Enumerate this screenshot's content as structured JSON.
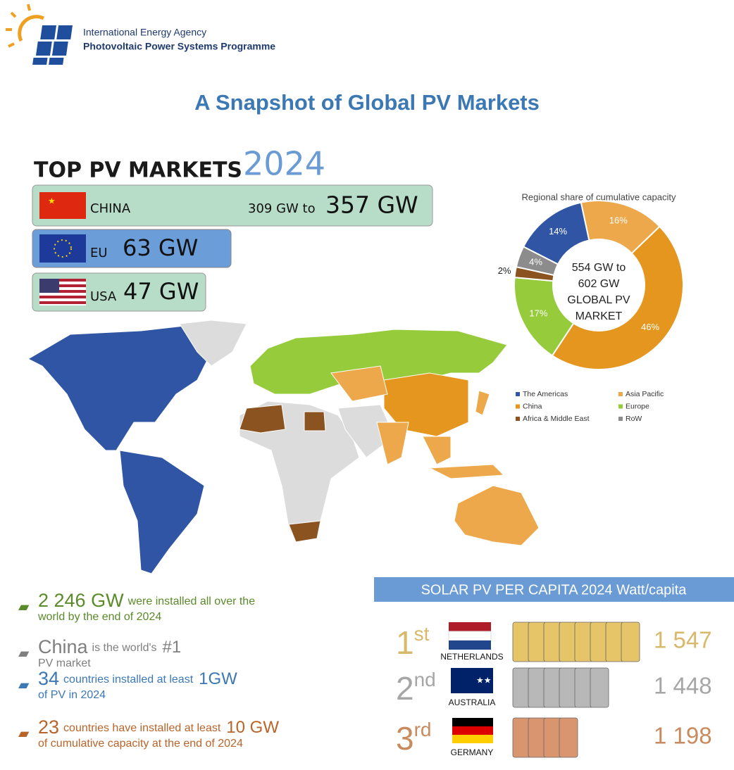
{
  "header": {
    "org": "International Energy Agency",
    "programme": "Photovoltaic Power Systems Programme"
  },
  "title": "A Snapshot of Global PV Markets",
  "top_markets": {
    "heading": "TOP PV MARKETS",
    "year": "2024",
    "rows": [
      {
        "country": "CHINA",
        "range_from": "309 GW to",
        "value": "357 GW"
      },
      {
        "country": "EU",
        "value": "63 GW"
      },
      {
        "country": "USA",
        "value": "47 GW"
      }
    ]
  },
  "chart_data": {
    "type": "donut",
    "title": "Regional share of cumulative capacity",
    "center_label": [
      "554 GW to",
      "602 GW",
      "GLOBAL PV",
      "MARKET"
    ],
    "categories": [
      "The Americas",
      "Asia Pacific",
      "China",
      "Europe",
      "Africa & Middle East",
      "RoW"
    ],
    "values": [
      14,
      16,
      46,
      17,
      2,
      4
    ],
    "value_labels": [
      "14%",
      "16%",
      "46%",
      "17%",
      "2%",
      "4%"
    ],
    "colors": [
      "#2f55a4",
      "#eca84a",
      "#e4961e",
      "#96cc3c",
      "#8a5320",
      "#8c8c8c"
    ],
    "legend": "bottom"
  },
  "stats": [
    {
      "big": "2 246 GW",
      "text": "were installed all over the",
      "text2": "world by the end of 2024"
    },
    {
      "big": "China",
      "text": "is the world's",
      "big2": "#1",
      "text2": "PV market"
    },
    {
      "big": "34",
      "text": "countries installed at least",
      "big2": "1GW",
      "text2": "of PV in 2024"
    },
    {
      "big": "23",
      "text": "countries have installed at least",
      "big2": "10 GW",
      "text2": "of cumulative capacity at the end of 2024"
    }
  ],
  "per_capita": {
    "heading": "SOLAR PV PER CAPITA 2024 Watt/capita",
    "rows": [
      {
        "rank": "1",
        "suffix": "st",
        "country": "NETHERLANDS",
        "value": "1 547"
      },
      {
        "rank": "2",
        "suffix": "nd",
        "country": "AUSTRALIA",
        "value": "1 448"
      },
      {
        "rank": "3",
        "suffix": "rd",
        "country": "GERMANY",
        "value": "1 198"
      }
    ]
  }
}
